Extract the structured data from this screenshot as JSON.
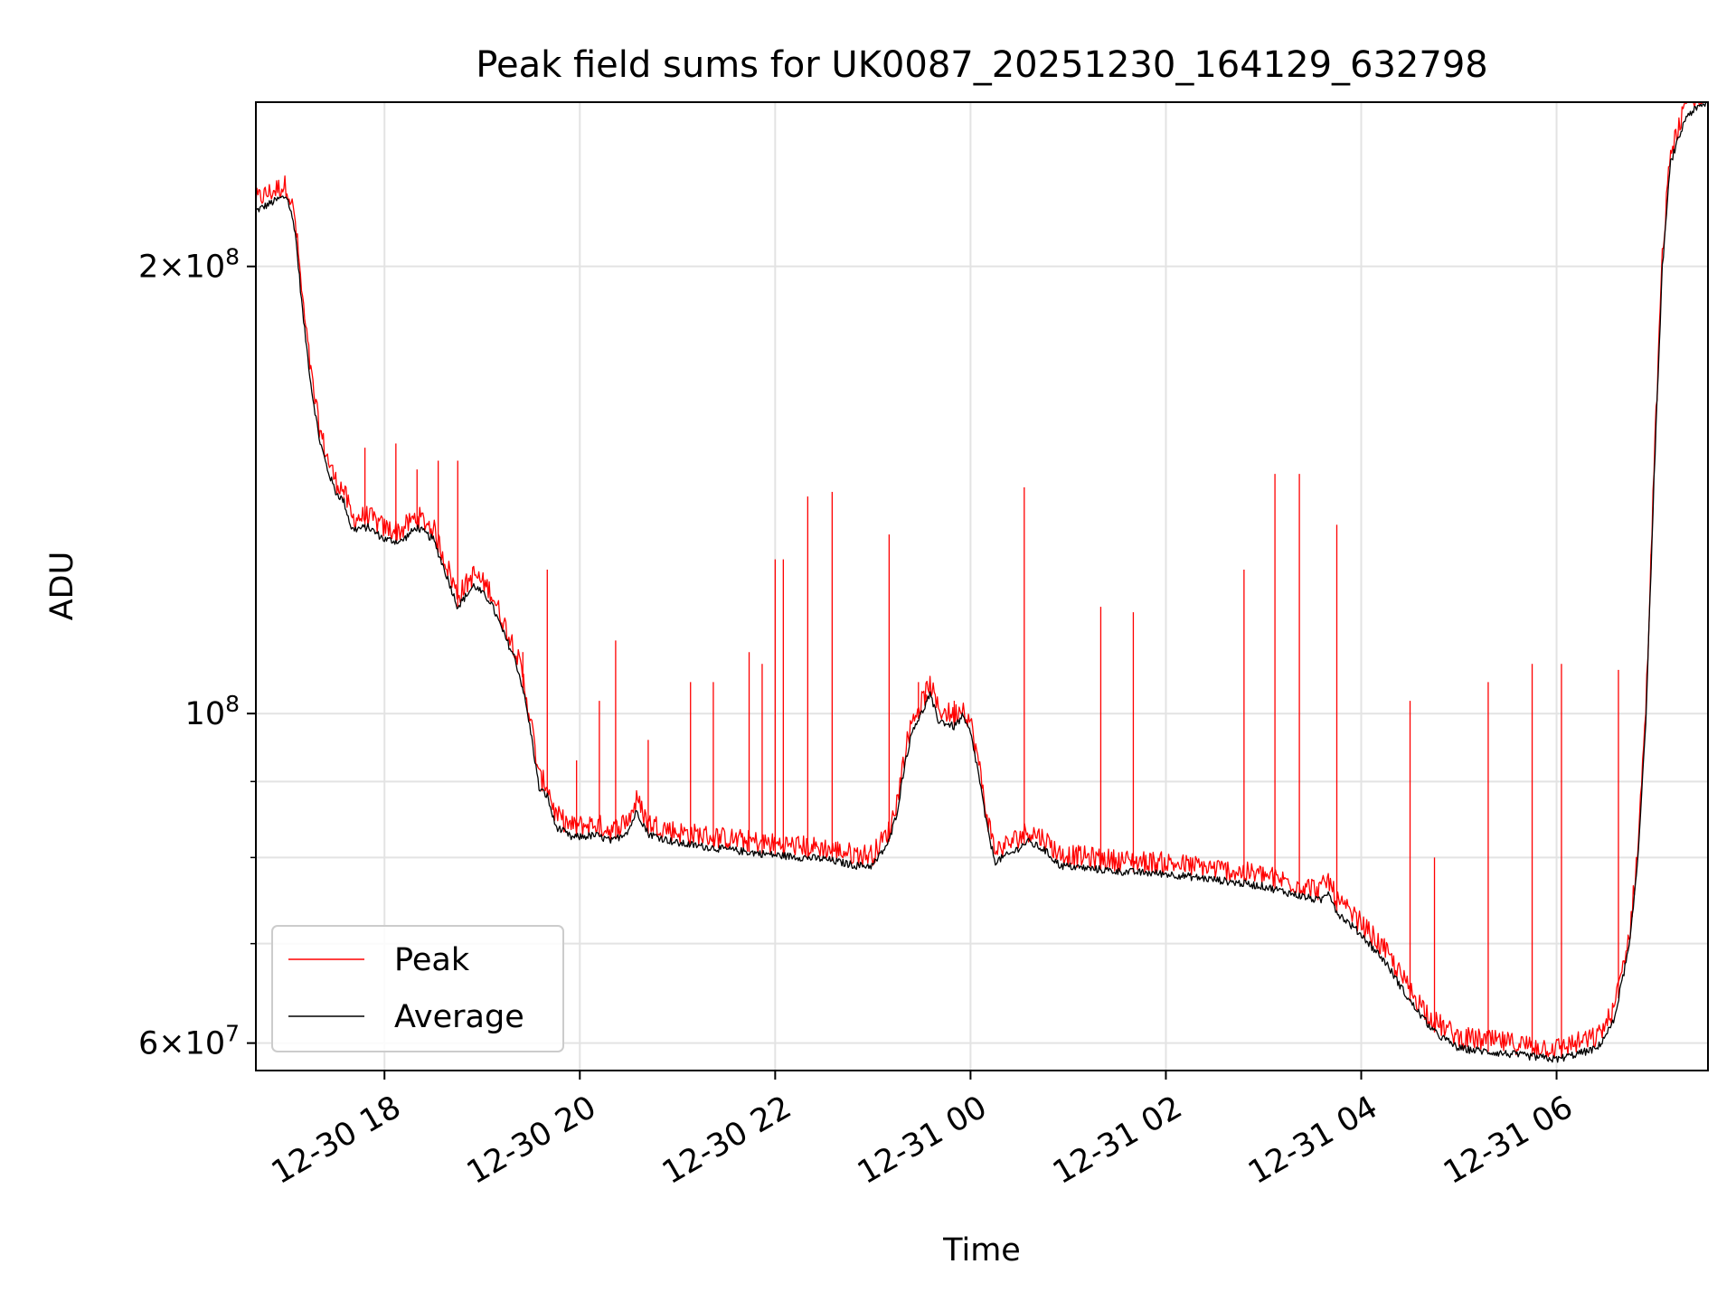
{
  "chart_data": {
    "type": "line",
    "title": "Peak field sums for UK0087_20251230_164129_632798",
    "xlabel": "Time",
    "ylabel": "ADU",
    "yscale": "log",
    "ylim": [
      57500000,
      258000000
    ],
    "xlim": [
      "2025-12-30 16:41",
      "2025-12-31 07:33"
    ],
    "grid": true,
    "legend": {
      "placement": "lower-left",
      "entries": [
        "Peak",
        "Average"
      ]
    },
    "x_ticks": [
      {
        "time": "2025-12-30 18:00",
        "label": "12-30 18"
      },
      {
        "time": "2025-12-30 20:00",
        "label": "12-30 20"
      },
      {
        "time": "2025-12-30 22:00",
        "label": "12-30 22"
      },
      {
        "time": "2025-12-31 00:00",
        "label": "12-31 00"
      },
      {
        "time": "2025-12-31 02:00",
        "label": "12-31 02"
      },
      {
        "time": "2025-12-31 04:00",
        "label": "12-31 04"
      },
      {
        "time": "2025-12-31 06:00",
        "label": "12-31 06"
      }
    ],
    "y_ticks_major": [
      {
        "value": 60000000,
        "mantissa": "6",
        "base": "10",
        "exp": "7"
      },
      {
        "value": 100000000,
        "mantissa": "",
        "base": "10",
        "exp": "8"
      },
      {
        "value": 200000000,
        "mantissa": "2",
        "base": "10",
        "exp": "8"
      }
    ],
    "y_ticks_minor": [
      70000000,
      80000000,
      90000000
    ],
    "series": [
      {
        "name": "Average",
        "color": "#000000",
        "points": [
          [
            "2025-12-30 16:41",
            218000000
          ],
          [
            "2025-12-30 16:55",
            222000000
          ],
          [
            "2025-12-30 17:00",
            223000000
          ],
          [
            "2025-12-30 17:05",
            212000000
          ],
          [
            "2025-12-30 17:10",
            185000000
          ],
          [
            "2025-12-30 17:15",
            166000000
          ],
          [
            "2025-12-30 17:20",
            153000000
          ],
          [
            "2025-12-30 17:25",
            146000000
          ],
          [
            "2025-12-30 17:30",
            141000000
          ],
          [
            "2025-12-30 17:35",
            139000000
          ],
          [
            "2025-12-30 17:40",
            133000000
          ],
          [
            "2025-12-30 17:50",
            133500000
          ],
          [
            "2025-12-30 18:00",
            131000000
          ],
          [
            "2025-12-30 18:10",
            130500000
          ],
          [
            "2025-12-30 18:20",
            133500000
          ],
          [
            "2025-12-30 18:30",
            131000000
          ],
          [
            "2025-12-30 18:38",
            124000000
          ],
          [
            "2025-12-30 18:45",
            118000000
          ],
          [
            "2025-12-30 18:55",
            122000000
          ],
          [
            "2025-12-30 19:05",
            119000000
          ],
          [
            "2025-12-30 19:15",
            112000000
          ],
          [
            "2025-12-30 19:20",
            109000000
          ],
          [
            "2025-12-30 19:25",
            104000000
          ],
          [
            "2025-12-30 19:30",
            97000000
          ],
          [
            "2025-12-30 19:35",
            89000000
          ],
          [
            "2025-12-30 19:40",
            88000000
          ],
          [
            "2025-12-30 19:45",
            84000000
          ],
          [
            "2025-12-30 19:55",
            82500000
          ],
          [
            "2025-12-30 20:10",
            82800000
          ],
          [
            "2025-12-30 20:20",
            82000000
          ],
          [
            "2025-12-30 20:30",
            83500000
          ],
          [
            "2025-12-30 20:35",
            86000000
          ],
          [
            "2025-12-30 20:42",
            83000000
          ],
          [
            "2025-12-30 21:00",
            81800000
          ],
          [
            "2025-12-30 21:30",
            81000000
          ],
          [
            "2025-12-30 22:00",
            80300000
          ],
          [
            "2025-12-30 22:30",
            79800000
          ],
          [
            "2025-12-30 22:50",
            79000000
          ],
          [
            "2025-12-30 23:00",
            79000000
          ],
          [
            "2025-12-30 23:10",
            82000000
          ],
          [
            "2025-12-30 23:15",
            86000000
          ],
          [
            "2025-12-30 23:20",
            93000000
          ],
          [
            "2025-12-30 23:25",
            98000000
          ],
          [
            "2025-12-30 23:30",
            100000000
          ],
          [
            "2025-12-30 23:35",
            103000000
          ],
          [
            "2025-12-30 23:40",
            99000000
          ],
          [
            "2025-12-30 23:50",
            98000000
          ],
          [
            "2025-12-30 23:55",
            99500000
          ],
          [
            "2025-12-31 00:00",
            97000000
          ],
          [
            "2025-12-31 00:05",
            91000000
          ],
          [
            "2025-12-31 00:10",
            84000000
          ],
          [
            "2025-12-31 00:15",
            79500000
          ],
          [
            "2025-12-31 00:25",
            80500000
          ],
          [
            "2025-12-31 00:35",
            82000000
          ],
          [
            "2025-12-31 00:45",
            81000000
          ],
          [
            "2025-12-31 00:55",
            79000000
          ],
          [
            "2025-12-31 01:30",
            78300000
          ],
          [
            "2025-12-31 02:00",
            78000000
          ],
          [
            "2025-12-31 02:30",
            77300000
          ],
          [
            "2025-12-31 03:00",
            76500000
          ],
          [
            "2025-12-31 03:20",
            75500000
          ],
          [
            "2025-12-31 03:35",
            74800000
          ],
          [
            "2025-12-31 03:40",
            76000000
          ],
          [
            "2025-12-31 03:45",
            73500000
          ],
          [
            "2025-12-31 04:00",
            71000000
          ],
          [
            "2025-12-31 04:15",
            68000000
          ],
          [
            "2025-12-31 04:30",
            64000000
          ],
          [
            "2025-12-31 04:45",
            61000000
          ],
          [
            "2025-12-31 05:00",
            59500000
          ],
          [
            "2025-12-31 05:30",
            59000000
          ],
          [
            "2025-12-31 06:00",
            58500000
          ],
          [
            "2025-12-31 06:25",
            59500000
          ],
          [
            "2025-12-31 06:35",
            62000000
          ],
          [
            "2025-12-31 06:45",
            70000000
          ],
          [
            "2025-12-31 06:50",
            80000000
          ],
          [
            "2025-12-31 06:55",
            100000000
          ],
          [
            "2025-12-31 07:00",
            145000000
          ],
          [
            "2025-12-31 07:05",
            200000000
          ],
          [
            "2025-12-31 07:10",
            235000000
          ],
          [
            "2025-12-31 07:20",
            253000000
          ],
          [
            "2025-12-31 07:33",
            258000000
          ]
        ]
      },
      {
        "name": "Peak",
        "color": "#ff0000",
        "spikes": [
          [
            "2025-12-30 17:35",
            140000000
          ],
          [
            "2025-12-30 17:48",
            151000000
          ],
          [
            "2025-12-30 18:07",
            152000000
          ],
          [
            "2025-12-30 18:20",
            146000000
          ],
          [
            "2025-12-30 18:33",
            148000000
          ],
          [
            "2025-12-30 18:45",
            148000000
          ],
          [
            "2025-12-30 19:25",
            110000000
          ],
          [
            "2025-12-30 19:40",
            125000000
          ],
          [
            "2025-12-30 19:58",
            93000000
          ],
          [
            "2025-12-30 20:12",
            102000000
          ],
          [
            "2025-12-30 20:22",
            112000000
          ],
          [
            "2025-12-30 20:42",
            96000000
          ],
          [
            "2025-12-30 21:08",
            105000000
          ],
          [
            "2025-12-30 21:22",
            105000000
          ],
          [
            "2025-12-30 21:44",
            110000000
          ],
          [
            "2025-12-30 21:52",
            108000000
          ],
          [
            "2025-12-30 22:00",
            127000000
          ],
          [
            "2025-12-30 22:05",
            127000000
          ],
          [
            "2025-12-30 22:20",
            140000000
          ],
          [
            "2025-12-30 22:35",
            141000000
          ],
          [
            "2025-12-30 23:10",
            132000000
          ],
          [
            "2025-12-30 23:28",
            105000000
          ],
          [
            "2025-12-30 23:33",
            103000000
          ],
          [
            "2025-12-30 23:50",
            102000000
          ],
          [
            "2025-12-31 00:33",
            142000000
          ],
          [
            "2025-12-31 01:20",
            118000000
          ],
          [
            "2025-12-31 01:40",
            117000000
          ],
          [
            "2025-12-31 02:48",
            125000000
          ],
          [
            "2025-12-31 03:07",
            145000000
          ],
          [
            "2025-12-31 03:22",
            145000000
          ],
          [
            "2025-12-31 03:45",
            134000000
          ],
          [
            "2025-12-31 04:30",
            102000000
          ],
          [
            "2025-12-31 04:45",
            80000000
          ],
          [
            "2025-12-31 05:18",
            105000000
          ],
          [
            "2025-12-31 05:45",
            108000000
          ],
          [
            "2025-12-31 06:03",
            108000000
          ],
          [
            "2025-12-31 06:38",
            107000000
          ],
          [
            "2025-12-31 06:58",
            128000000
          ]
        ]
      }
    ]
  }
}
